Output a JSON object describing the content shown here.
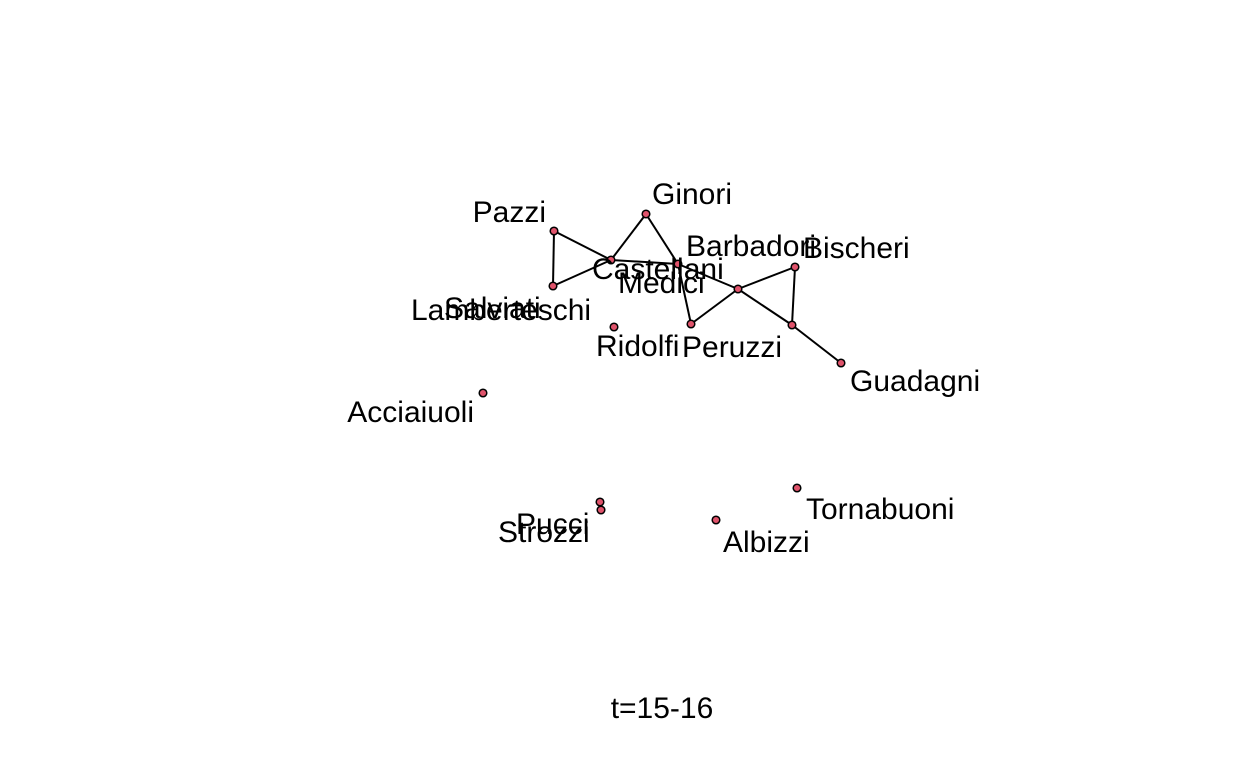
{
  "caption": "t=15-16",
  "colors": {
    "node_fill": "#DF536B",
    "node_stroke": "#000000",
    "edge": "#000000",
    "text": "#000000",
    "background": "#FFFFFF"
  },
  "nodes": [
    {
      "id": "pazzi",
      "label": "Pazzi"
    },
    {
      "id": "ginori",
      "label": "Ginori"
    },
    {
      "id": "castellani",
      "label": "Castellani"
    },
    {
      "id": "barbadori",
      "label": "Barbadori"
    },
    {
      "id": "bischeri",
      "label": "Bischeri"
    },
    {
      "id": "medici",
      "label": "Medici"
    },
    {
      "id": "salviati",
      "label": "Salviati"
    },
    {
      "id": "lamberteschi",
      "label": "Lamberteschi"
    },
    {
      "id": "ridolfi",
      "label": "Ridolfi"
    },
    {
      "id": "peruzzi",
      "label": "Peruzzi"
    },
    {
      "id": "guadagni",
      "label": "Guadagni"
    },
    {
      "id": "acciaiuoli",
      "label": "Acciaiuoli"
    },
    {
      "id": "tornabuoni",
      "label": "Tornabuoni"
    },
    {
      "id": "pucci",
      "label": "Pucci"
    },
    {
      "id": "strozzi",
      "label": "Strozzi"
    },
    {
      "id": "albizzi",
      "label": "Albizzi"
    }
  ],
  "edges": [
    [
      "pazzi",
      "salviati"
    ],
    [
      "pazzi",
      "castellani"
    ],
    [
      "salviati",
      "castellani"
    ],
    [
      "castellani",
      "ginori"
    ],
    [
      "castellani",
      "barbadori"
    ],
    [
      "ginori",
      "barbadori"
    ],
    [
      "barbadori",
      "medici"
    ],
    [
      "barbadori",
      "peruzzi"
    ],
    [
      "medici",
      "peruzzi"
    ],
    [
      "medici",
      "bischeri"
    ],
    [
      "medici",
      "guadagni"
    ],
    [
      "bischeri",
      "guadagni"
    ],
    [
      "guadagni",
      "tornabuoni_placeholder_none"
    ]
  ]
}
